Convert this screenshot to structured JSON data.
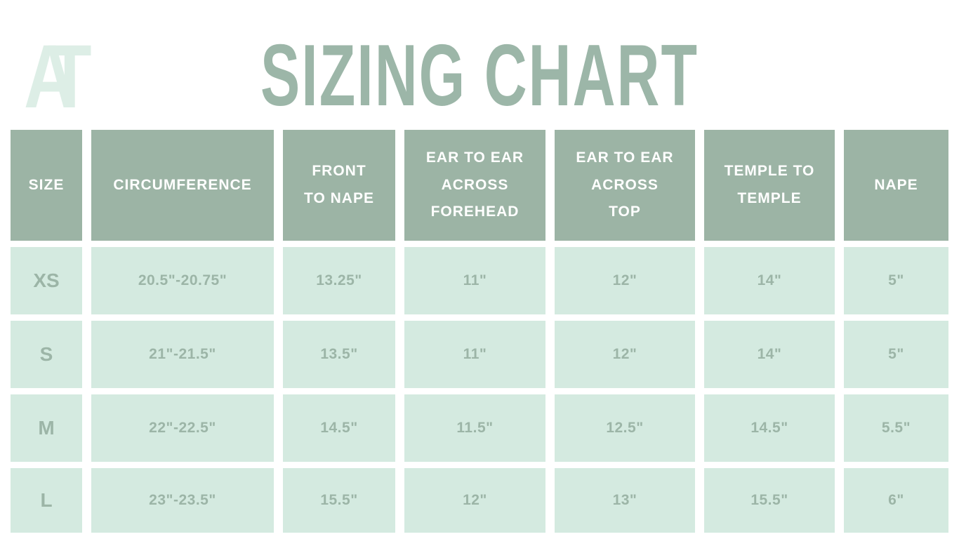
{
  "page": {
    "title": "SIZING CHART",
    "logo_a": "A",
    "logo_t": "T",
    "background": "#ffffff"
  },
  "colors": {
    "sage": "#9cb4a5",
    "mint_cell": "#d4eae0",
    "cell_text": "#9cb5a7",
    "title_text": "#9cb6a8",
    "logo_pale_mint": "#ddeee6",
    "header_text": "#ffffff"
  },
  "chart_data": {
    "type": "table",
    "title": "SIZING CHART",
    "columns": [
      "SIZE",
      "CIRCUMFERENCE",
      "FRONT TO NAPE",
      "EAR TO EAR ACROSS FOREHEAD",
      "EAR TO EAR ACROSS TOP",
      "TEMPLE TO TEMPLE",
      "NAPE"
    ],
    "rows": [
      [
        "XS",
        "20.5\"-20.75\"",
        "13.25\"",
        "11\"",
        "12\"",
        "14\"",
        "5\""
      ],
      [
        "S",
        "21\"-21.5\"",
        "13.5\"",
        "11\"",
        "12\"",
        "14\"",
        "5\""
      ],
      [
        "M",
        "22\"-22.5\"",
        "14.5\"",
        "11.5\"",
        "12.5\"",
        "14.5\"",
        "5.5\""
      ],
      [
        "L",
        "23\"-23.5\"",
        "15.5\"",
        "12\"",
        "13\"",
        "15.5\"",
        "6\""
      ]
    ]
  },
  "table": {
    "headers": [
      "SIZE",
      "CIRCUMFERENCE",
      "FRONT\nTO NAPE",
      "EAR TO EAR\nACROSS\nFOREHEAD",
      "EAR TO EAR\nACROSS\nTOP",
      "TEMPLE TO\nTEMPLE",
      "NAPE"
    ],
    "rows": [
      {
        "cells": [
          "XS",
          "20.5\"-20.75\"",
          "13.25\"",
          "11\"",
          "12\"",
          "14\"",
          "5\""
        ]
      },
      {
        "cells": [
          "S",
          "21\"-21.5\"",
          "13.5\"",
          "11\"",
          "12\"",
          "14\"",
          "5\""
        ]
      },
      {
        "cells": [
          "M",
          "22\"-22.5\"",
          "14.5\"",
          "11.5\"",
          "12.5\"",
          "14.5\"",
          "5.5\""
        ]
      },
      {
        "cells": [
          "L",
          "23\"-23.5\"",
          "15.5\"",
          "12\"",
          "13\"",
          "15.5\"",
          "6\""
        ]
      }
    ]
  }
}
